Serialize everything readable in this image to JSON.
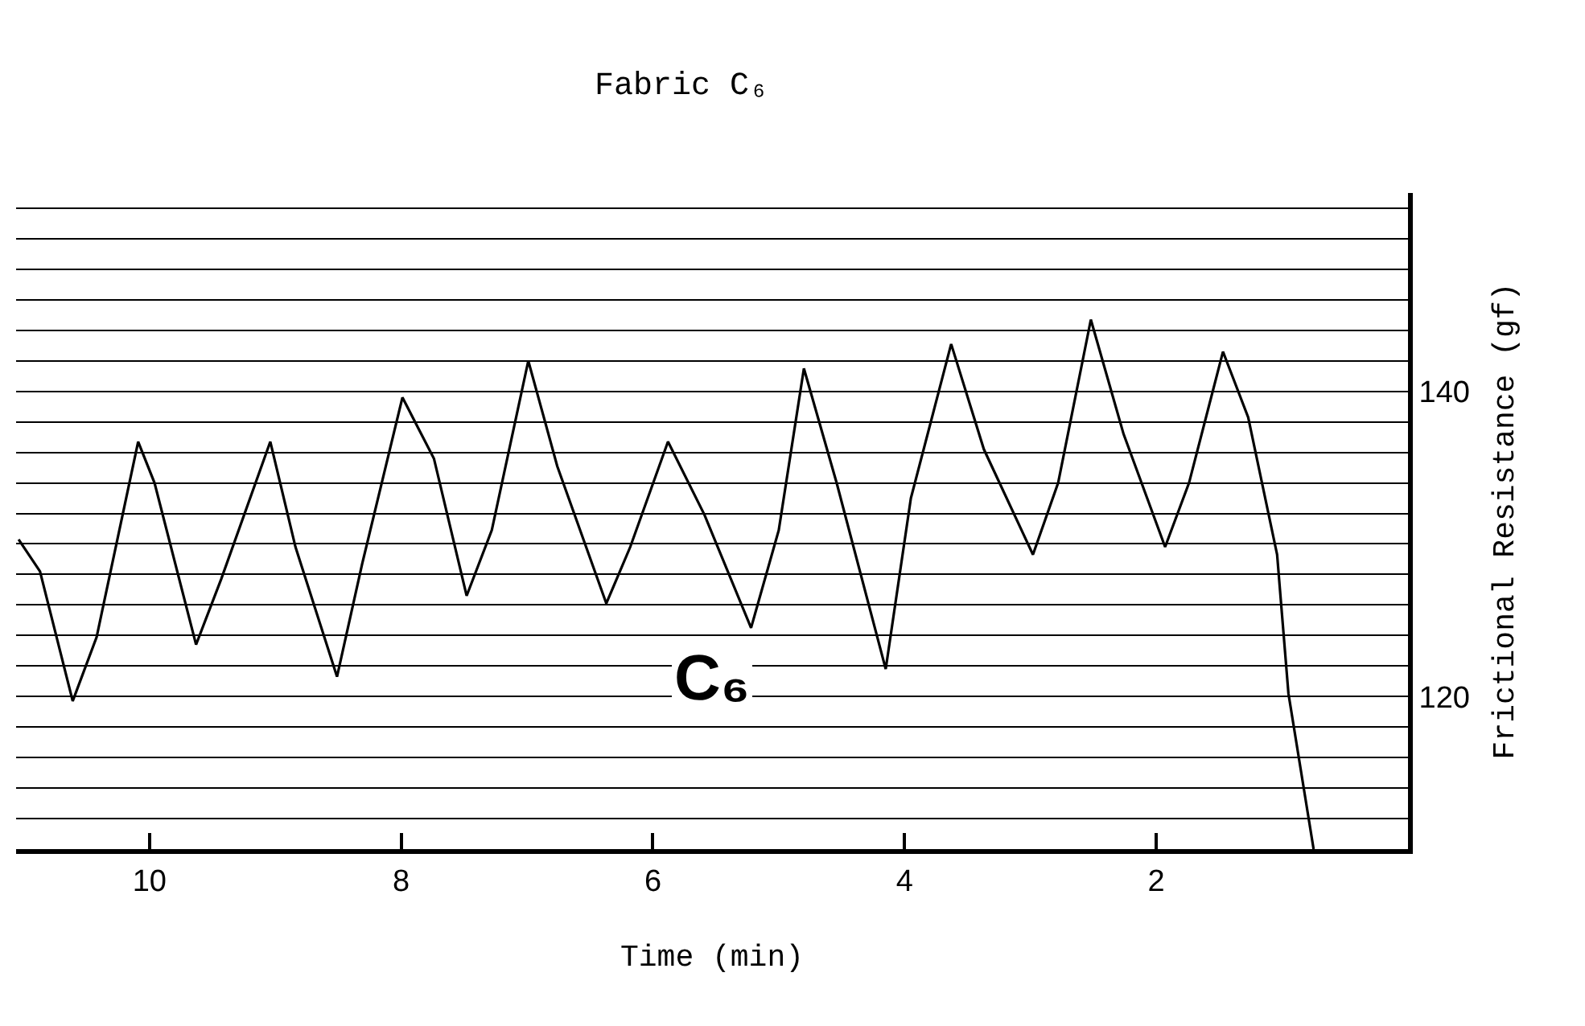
{
  "chart_data": {
    "type": "line",
    "title": "Fabric C₆",
    "xlabel": "Time (min)",
    "ylabel": "Frictional Resistance (gf)",
    "x": [
      11.04,
      10.87,
      10.61,
      10.42,
      10.09,
      9.96,
      9.63,
      9.43,
      9.04,
      8.84,
      8.51,
      8.31,
      7.99,
      7.74,
      7.48,
      7.28,
      6.99,
      6.76,
      6.37,
      6.18,
      5.88,
      5.59,
      5.22,
      5.0,
      4.8,
      4.54,
      4.15,
      3.95,
      3.63,
      3.37,
      2.98,
      2.78,
      2.52,
      2.26,
      1.93,
      1.74,
      1.47,
      1.27,
      1.04,
      0.95,
      0.75
    ],
    "series": [
      {
        "color": "#000000",
        "values": [
          130.3,
          128.2,
          119.7,
          123.9,
          136.7,
          134,
          123.4,
          127.7,
          136.7,
          129.8,
          121.3,
          128.7,
          139.6,
          135.6,
          126.6,
          130.9,
          142,
          135.1,
          126.1,
          129.8,
          136.7,
          131.9,
          124.5,
          130.9,
          141.5,
          134,
          121.8,
          133,
          143.1,
          136.2,
          129.3,
          134,
          144.7,
          137.2,
          129.8,
          134,
          142.6,
          138.3,
          129.3,
          120.2,
          110
        ]
      }
    ],
    "xlim": [
      11.06,
      0
    ],
    "xticks": [
      10,
      8,
      6,
      4,
      2
    ],
    "ylim": [
      110,
      153
    ],
    "yticks": [
      {
        "value": 112,
        "label": null
      },
      {
        "value": 114,
        "label": null
      },
      {
        "value": 116,
        "label": null
      },
      {
        "value": 118,
        "label": null
      },
      120,
      {
        "value": 122,
        "label": null
      },
      {
        "value": 124,
        "label": null
      },
      {
        "value": 126,
        "label": null
      },
      {
        "value": 128,
        "label": null
      },
      {
        "value": 130,
        "label": null
      },
      {
        "value": 132,
        "label": null
      },
      {
        "value": 134,
        "label": null
      },
      {
        "value": 136,
        "label": null
      },
      {
        "value": 138,
        "label": null
      },
      140,
      {
        "value": 142,
        "label": null
      },
      {
        "value": 144,
        "label": null
      },
      {
        "value": 146,
        "label": null
      },
      {
        "value": 148,
        "label": null
      },
      {
        "value": 150,
        "label": null
      },
      {
        "value": 152,
        "label": null
      }
    ],
    "grid": "y",
    "marker": "none",
    "line_style": "solid",
    "annotations": [
      "C₆"
    ]
  }
}
